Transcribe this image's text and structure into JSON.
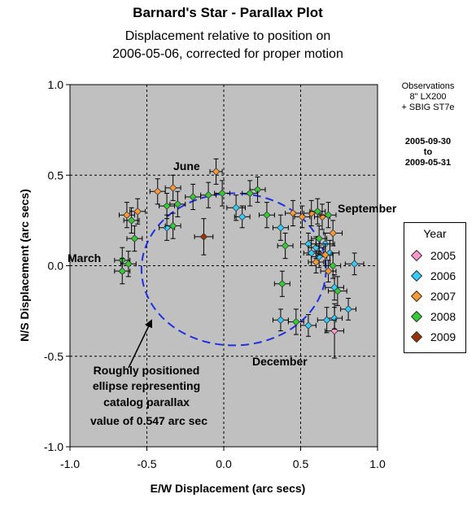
{
  "title": "Barnard's Star - Parallax Plot",
  "subtitle_line1": "Displacement relative to position on",
  "subtitle_line2": "2006-05-06, corrected for proper motion",
  "observations_note": [
    "Observations",
    "8\" LX200",
    "+ SBIG ST7e"
  ],
  "date_range": [
    "2005-09-30",
    "to",
    "2009-05-31"
  ],
  "legend": {
    "title": "Year",
    "items": [
      {
        "label": "2005",
        "color": "#ff99cc"
      },
      {
        "label": "2006",
        "color": "#33ccff"
      },
      {
        "label": "2007",
        "color": "#ff9933"
      },
      {
        "label": "2008",
        "color": "#33cc33"
      },
      {
        "label": "2009",
        "color": "#993300"
      }
    ]
  },
  "annotations": {
    "june": "June",
    "march": "March",
    "september": "September",
    "december": "December",
    "ellipse_note": [
      "Roughly positioned",
      "ellipse representing",
      "catalog parallax",
      "value of 0.547 arc sec"
    ]
  },
  "chart_data": {
    "type": "scatter",
    "xlabel": "E/W Displacement (arc secs)",
    "ylabel": "N/S Displacement (arc secs)",
    "xlim": [
      -1.0,
      1.0
    ],
    "ylim": [
      -1.0,
      1.0
    ],
    "x_ticks": [
      "-1.0",
      "-0.5",
      "0.0",
      "0.5",
      "1.0"
    ],
    "y_ticks": [
      "1.0",
      "0.5",
      "0.0",
      "-0.5",
      "-1.0"
    ],
    "grid": true,
    "legend_position": "right",
    "ellipse": {
      "cx": 0.065,
      "cy": -0.02,
      "rx": 0.6,
      "ry": 0.42,
      "color": "#1f2fdf"
    },
    "series": [
      {
        "name": "2005",
        "color": "#ff99cc",
        "points": [
          {
            "x": 0.72,
            "y": -0.36,
            "ex": 0.06,
            "ey": 0.15
          }
        ]
      },
      {
        "name": "2006",
        "color": "#33ccff",
        "points": [
          {
            "x": 0.08,
            "y": 0.32,
            "ex": 0.06,
            "ey": 0.07
          },
          {
            "x": 0.12,
            "y": 0.27,
            "ex": 0.05,
            "ey": 0.06
          },
          {
            "x": 0.37,
            "y": 0.21,
            "ex": 0.05,
            "ey": 0.07
          },
          {
            "x": -0.37,
            "y": 0.21,
            "ex": 0.05,
            "ey": 0.07
          },
          {
            "x": 0.55,
            "y": 0.12,
            "ex": 0.05,
            "ey": 0.06
          },
          {
            "x": 0.6,
            "y": 0.1,
            "ex": 0.05,
            "ey": 0.06
          },
          {
            "x": 0.66,
            "y": 0.12,
            "ex": 0.06,
            "ey": 0.06
          },
          {
            "x": 0.62,
            "y": 0.05,
            "ex": 0.05,
            "ey": 0.06
          },
          {
            "x": 0.57,
            "y": 0.07,
            "ex": 0.05,
            "ey": 0.07
          },
          {
            "x": 0.69,
            "y": 0.07,
            "ex": 0.06,
            "ey": 0.07
          },
          {
            "x": 0.85,
            "y": 0.01,
            "ex": 0.06,
            "ey": 0.06
          },
          {
            "x": 0.72,
            "y": -0.12,
            "ex": 0.06,
            "ey": 0.07
          },
          {
            "x": 0.81,
            "y": -0.24,
            "ex": 0.05,
            "ey": 0.06
          },
          {
            "x": 0.72,
            "y": -0.29,
            "ex": 0.05,
            "ey": 0.06
          },
          {
            "x": 0.67,
            "y": -0.3,
            "ex": 0.06,
            "ey": 0.07
          },
          {
            "x": 0.55,
            "y": -0.33,
            "ex": 0.05,
            "ey": 0.06
          },
          {
            "x": 0.37,
            "y": -0.3,
            "ex": 0.05,
            "ey": 0.06
          }
        ]
      },
      {
        "name": "2007",
        "color": "#ff9933",
        "points": [
          {
            "x": -0.05,
            "y": 0.52,
            "ex": 0.04,
            "ey": 0.07
          },
          {
            "x": -0.33,
            "y": 0.43,
            "ex": 0.05,
            "ey": 0.07
          },
          {
            "x": -0.43,
            "y": 0.41,
            "ex": 0.05,
            "ey": 0.07
          },
          {
            "x": -0.63,
            "y": 0.28,
            "ex": 0.05,
            "ey": 0.07
          },
          {
            "x": -0.56,
            "y": 0.3,
            "ex": 0.05,
            "ey": 0.07
          },
          {
            "x": 0.45,
            "y": 0.29,
            "ex": 0.05,
            "ey": 0.07
          },
          {
            "x": 0.51,
            "y": 0.27,
            "ex": 0.05,
            "ey": 0.06
          },
          {
            "x": 0.57,
            "y": 0.29,
            "ex": 0.05,
            "ey": 0.07
          },
          {
            "x": 0.64,
            "y": 0.27,
            "ex": 0.05,
            "ey": 0.07
          },
          {
            "x": 0.71,
            "y": 0.18,
            "ex": 0.06,
            "ey": 0.07
          },
          {
            "x": 0.66,
            "y": 0.06,
            "ex": 0.05,
            "ey": 0.06
          },
          {
            "x": 0.6,
            "y": 0.02,
            "ex": 0.05,
            "ey": 0.06
          },
          {
            "x": 0.68,
            "y": -0.03,
            "ex": 0.05,
            "ey": 0.06
          }
        ]
      },
      {
        "name": "2008",
        "color": "#33cc33",
        "points": [
          {
            "x": -0.01,
            "y": 0.4,
            "ex": 0.05,
            "ey": 0.07
          },
          {
            "x": 0.22,
            "y": 0.42,
            "ex": 0.05,
            "ey": 0.07
          },
          {
            "x": 0.17,
            "y": 0.4,
            "ex": 0.05,
            "ey": 0.07
          },
          {
            "x": -0.1,
            "y": 0.39,
            "ex": 0.05,
            "ey": 0.07
          },
          {
            "x": -0.2,
            "y": 0.38,
            "ex": 0.05,
            "ey": 0.07
          },
          {
            "x": -0.3,
            "y": 0.34,
            "ex": 0.05,
            "ey": 0.07
          },
          {
            "x": -0.37,
            "y": 0.33,
            "ex": 0.05,
            "ey": 0.07
          },
          {
            "x": -0.6,
            "y": 0.25,
            "ex": 0.05,
            "ey": 0.07
          },
          {
            "x": -0.58,
            "y": 0.15,
            "ex": 0.05,
            "ey": 0.07
          },
          {
            "x": -0.33,
            "y": 0.22,
            "ex": 0.05,
            "ey": 0.07
          },
          {
            "x": 0.28,
            "y": 0.28,
            "ex": 0.05,
            "ey": 0.07
          },
          {
            "x": 0.4,
            "y": 0.11,
            "ex": 0.05,
            "ey": 0.07
          },
          {
            "x": 0.61,
            "y": 0.3,
            "ex": 0.05,
            "ey": 0.07
          },
          {
            "x": 0.68,
            "y": 0.28,
            "ex": 0.05,
            "ey": 0.07
          },
          {
            "x": 0.62,
            "y": 0.15,
            "ex": 0.05,
            "ey": 0.07
          },
          {
            "x": 0.71,
            "y": 0.0,
            "ex": 0.05,
            "ey": 0.07
          },
          {
            "x": 0.74,
            "y": -0.14,
            "ex": 0.06,
            "ey": 0.08
          },
          {
            "x": 0.38,
            "y": -0.1,
            "ex": 0.05,
            "ey": 0.07
          },
          {
            "x": 0.47,
            "y": -0.31,
            "ex": 0.05,
            "ey": 0.07
          },
          {
            "x": -0.66,
            "y": 0.03,
            "ex": 0.05,
            "ey": 0.07
          },
          {
            "x": -0.62,
            "y": 0.01,
            "ex": 0.05,
            "ey": 0.07
          },
          {
            "x": -0.66,
            "y": -0.03,
            "ex": 0.05,
            "ey": 0.07
          }
        ]
      },
      {
        "name": "2009",
        "color": "#993300",
        "points": [
          {
            "x": -0.13,
            "y": 0.16,
            "ex": 0.06,
            "ey": 0.1
          }
        ]
      }
    ]
  }
}
